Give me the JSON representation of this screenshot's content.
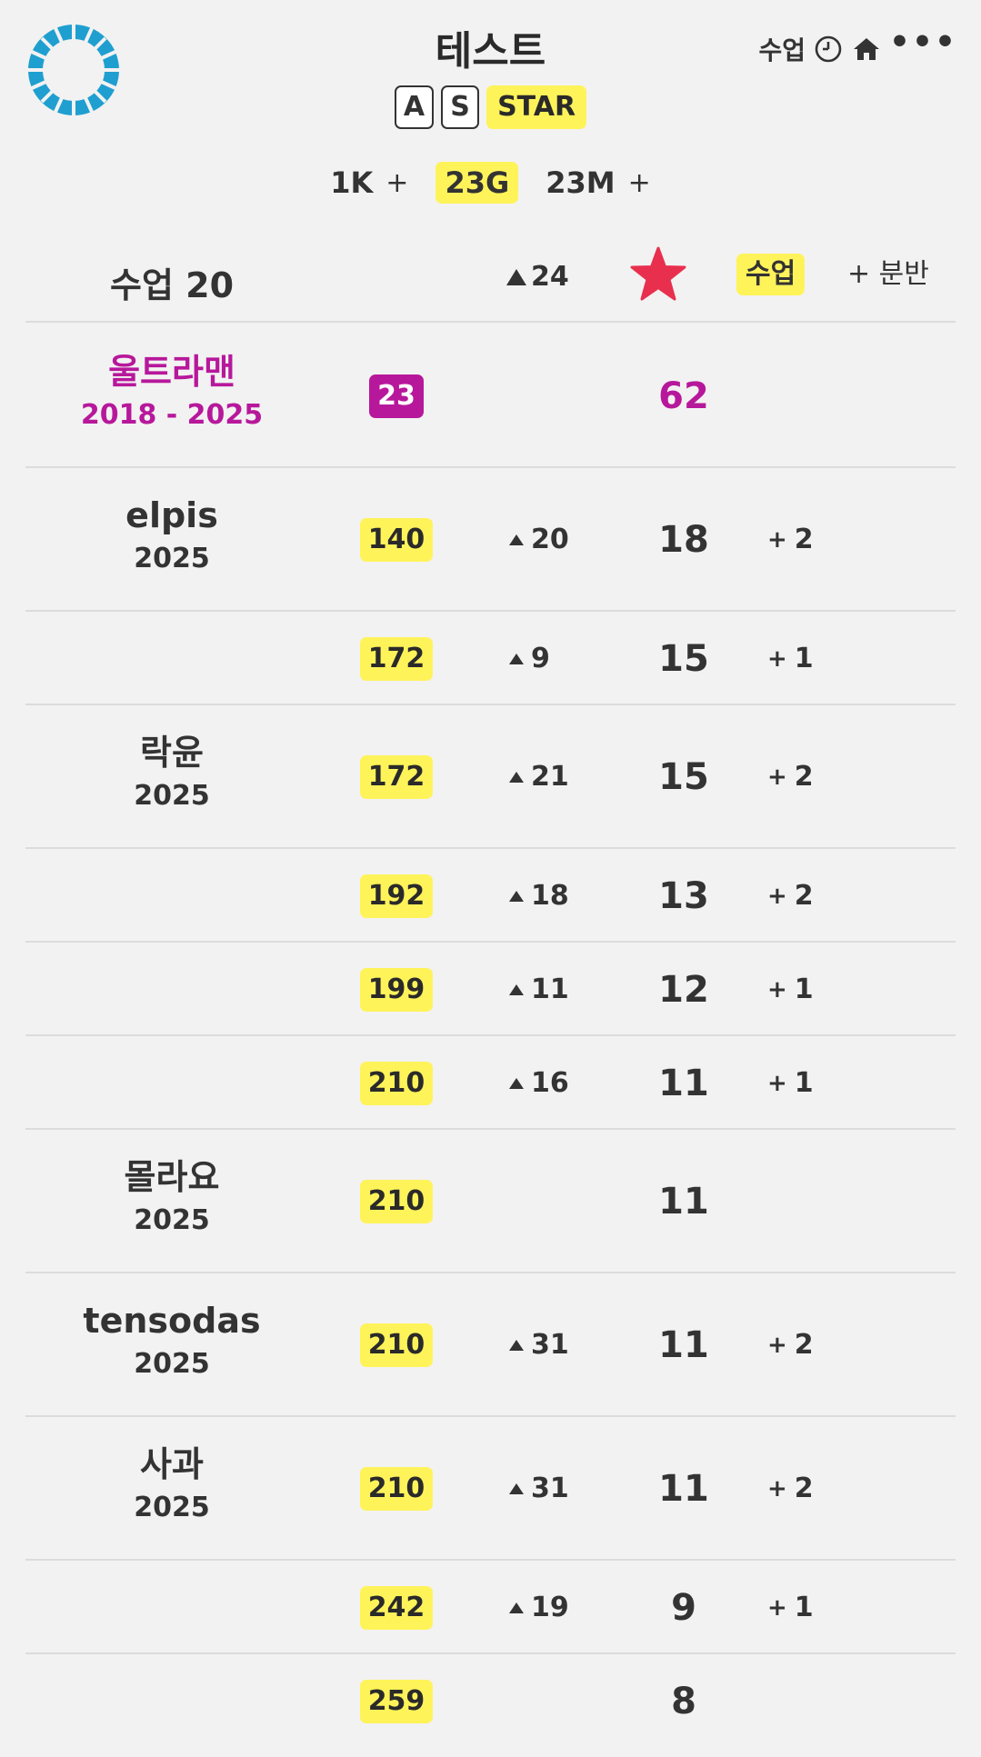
{
  "header": {
    "title": "테스트",
    "chips": [
      "A",
      "S"
    ],
    "star_chip": "STAR",
    "top_right_label": "수업",
    "icons": [
      "clock-icon",
      "home-icon",
      "more-icon"
    ],
    "more_glyph": "•••"
  },
  "stats": [
    {
      "label": "1K",
      "plus": "+",
      "highlight": false
    },
    {
      "label": "23G",
      "plus": "",
      "highlight": true
    },
    {
      "label": "23M",
      "plus": "+",
      "highlight": false
    }
  ],
  "columns": {
    "class_label": "수업 20",
    "rise_label": "24",
    "class_badge": "수업",
    "plus_label": "+ 분반"
  },
  "rows": [
    {
      "name": "울트라맨",
      "year": "2018 - 2025",
      "num": "23",
      "rise": "",
      "stars": "62",
      "extra": "",
      "special": true
    },
    {
      "name": "elpis",
      "year": "2025",
      "num": "140",
      "rise": "20",
      "stars": "18",
      "extra": "2"
    },
    {
      "name": "",
      "year": "",
      "num": "172",
      "rise": "9",
      "stars": "15",
      "extra": "1"
    },
    {
      "name": "락윤",
      "year": "2025",
      "num": "172",
      "rise": "21",
      "stars": "15",
      "extra": "2"
    },
    {
      "name": "",
      "year": "",
      "num": "192",
      "rise": "18",
      "stars": "13",
      "extra": "2"
    },
    {
      "name": "",
      "year": "",
      "num": "199",
      "rise": "11",
      "stars": "12",
      "extra": "1"
    },
    {
      "name": "",
      "year": "",
      "num": "210",
      "rise": "16",
      "stars": "11",
      "extra": "1"
    },
    {
      "name": "몰라요",
      "year": "2025",
      "num": "210",
      "rise": "",
      "stars": "11",
      "extra": ""
    },
    {
      "name": "tensodas",
      "year": "2025",
      "num": "210",
      "rise": "31",
      "stars": "11",
      "extra": "2"
    },
    {
      "name": "사과",
      "year": "2025",
      "num": "210",
      "rise": "31",
      "stars": "11",
      "extra": "2"
    },
    {
      "name": "",
      "year": "",
      "num": "242",
      "rise": "19",
      "stars": "9",
      "extra": "1"
    },
    {
      "name": "",
      "year": "",
      "num": "259",
      "rise": "",
      "stars": "8",
      "extra": ""
    }
  ],
  "colors": {
    "highlight": "#fff35a",
    "special": "#b7189b",
    "star": "#e8304e",
    "logo": "#1f9fd0"
  }
}
